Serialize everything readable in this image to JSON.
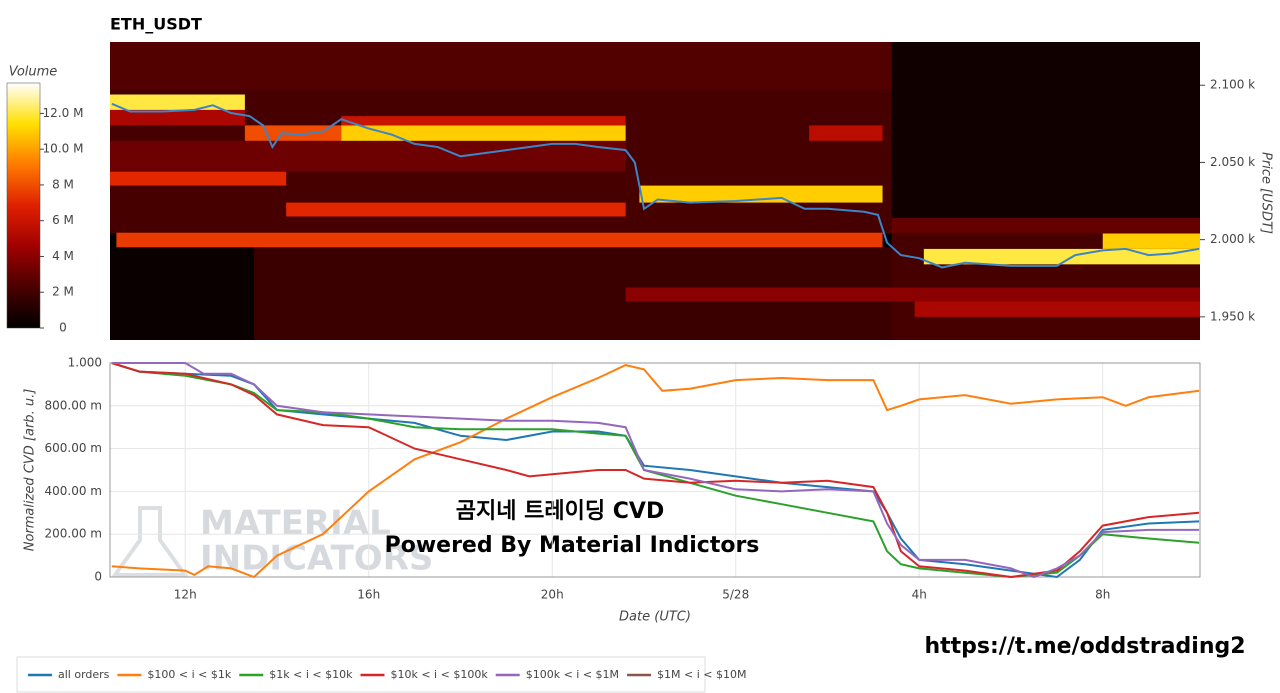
{
  "chart_data": [
    {
      "type": "heatmap",
      "title": "ETH_USDT",
      "y_label": "Price [USDT]",
      "xlim": [
        10.36,
        34.12
      ],
      "ylim": [
        1935,
        2128
      ],
      "yticks": [
        {
          "value": 1950,
          "label": "1.950 k"
        },
        {
          "value": 2000,
          "label": "2.000 k"
        },
        {
          "value": 2050,
          "label": "2.050 k"
        },
        {
          "value": 2100,
          "label": "2.100 k"
        }
      ],
      "colorbar": {
        "label": "Volume",
        "lim": [
          0,
          13.7
        ],
        "ticks": [
          0,
          {
            "value": 2,
            "label": "2 M"
          },
          {
            "value": 4,
            "label": "4 M"
          },
          {
            "value": 6,
            "label": "6 M"
          },
          {
            "value": 8,
            "label": "8 M"
          },
          {
            "value": 10,
            "label": "10.0 M"
          },
          {
            "value": 12,
            "label": "12.0 M"
          }
        ],
        "colorscale": [
          "#000000",
          "#4a0000",
          "#a00000",
          "#e02000",
          "#ff7a00",
          "#ffe000",
          "#ffffff"
        ]
      },
      "cells": [
        {
          "t0": 10.36,
          "t1": 27.4,
          "p0": 2097,
          "p1": 2128,
          "v": 2.5
        },
        {
          "t0": 10.36,
          "t1": 27.4,
          "p0": 2004,
          "p1": 2097,
          "v": 2.2
        },
        {
          "t0": 27.4,
          "t1": 34.12,
          "p0": 2007,
          "p1": 2128,
          "v": 0.5
        },
        {
          "t0": 27.4,
          "t1": 34.12,
          "p0": 1935,
          "p1": 2007,
          "v": 2.2
        },
        {
          "t0": 10.36,
          "t1": 13.5,
          "p0": 1935,
          "p1": 1995,
          "v": 0.3
        },
        {
          "t0": 13.5,
          "t1": 27.4,
          "p0": 1935,
          "p1": 1995,
          "v": 1.8
        },
        {
          "t0": 10.36,
          "t1": 21.6,
          "p0": 2044,
          "p1": 2064,
          "v": 3.2
        },
        {
          "t0": 10.36,
          "t1": 13.3,
          "p0": 2084,
          "p1": 2094,
          "v": 12
        },
        {
          "t0": 10.36,
          "t1": 13.3,
          "p0": 2074,
          "p1": 2084,
          "v": 5
        },
        {
          "t0": 13.3,
          "t1": 15.4,
          "p0": 2064,
          "p1": 2074,
          "v": 8
        },
        {
          "t0": 15.4,
          "t1": 21.6,
          "p0": 2064,
          "p1": 2074,
          "v": 11
        },
        {
          "t0": 15.4,
          "t1": 21.6,
          "p0": 2074,
          "p1": 2080,
          "v": 6
        },
        {
          "t0": 10.36,
          "t1": 14.2,
          "p0": 2035,
          "p1": 2044,
          "v": 7
        },
        {
          "t0": 14.2,
          "t1": 21.6,
          "p0": 2015,
          "p1": 2024,
          "v": 7
        },
        {
          "t0": 10.5,
          "t1": 27.2,
          "p0": 1995,
          "p1": 2004.5,
          "v": 7.5
        },
        {
          "t0": 21.9,
          "t1": 27.2,
          "p0": 2024,
          "p1": 2035,
          "v": 11
        },
        {
          "t0": 25.6,
          "t1": 27.2,
          "p0": 2064,
          "p1": 2074,
          "v": 5.5
        },
        {
          "t0": 21.6,
          "t1": 34.12,
          "p0": 1960,
          "p1": 1969,
          "v": 4
        },
        {
          "t0": 27.9,
          "t1": 34.12,
          "p0": 1950,
          "p1": 1960,
          "v": 5
        },
        {
          "t0": 28.1,
          "t1": 34.12,
          "p0": 1984,
          "p1": 1994,
          "v": 12
        },
        {
          "t0": 32,
          "t1": 34.12,
          "p0": 1994,
          "p1": 2004,
          "v": 11
        },
        {
          "t0": 27.4,
          "t1": 34.12,
          "p0": 2004,
          "p1": 2014,
          "v": 3
        }
      ],
      "price_line": {
        "color": "#3d85c6",
        "x": [
          10.4,
          10.8,
          11.5,
          12.2,
          12.6,
          13.0,
          13.4,
          13.7,
          13.9,
          14.1,
          14.5,
          15.0,
          15.4,
          16.0,
          16.5,
          17.0,
          17.5,
          18.0,
          18.5,
          19.0,
          19.5,
          20.0,
          20.5,
          21.0,
          21.6,
          21.8,
          22.0,
          22.3,
          23.0,
          24.0,
          25.0,
          25.5,
          26.0,
          26.8,
          27.1,
          27.3,
          27.6,
          28.0,
          28.5,
          29.0,
          30.0,
          31.0,
          31.4,
          32.0,
          32.5,
          33.0,
          33.5,
          34.1
        ],
        "values": [
          2088,
          2083,
          2083,
          2084,
          2087,
          2082,
          2080,
          2074,
          2060,
          2069,
          2068,
          2070,
          2078,
          2072,
          2068,
          2062,
          2060,
          2054,
          2056,
          2058,
          2060,
          2062,
          2062,
          2060,
          2058,
          2050,
          2020,
          2026,
          2024,
          2025,
          2027,
          2020,
          2020,
          2018,
          2016,
          1998,
          1990,
          1988,
          1982,
          1985,
          1983,
          1983,
          1990,
          1993,
          1994,
          1990,
          1991,
          1994
        ]
      }
    },
    {
      "type": "line",
      "x_label": "Date (UTC)",
      "y_label": "Normalized CVD [arb. u.]",
      "grid": true,
      "legend": "bottom-left",
      "xlim": [
        10.36,
        34.12
      ],
      "xticks": [
        {
          "value": 12,
          "label": "12h"
        },
        {
          "value": 16,
          "label": "16h"
        },
        {
          "value": 20,
          "label": "20h"
        },
        {
          "value": 24,
          "label": "5/28"
        },
        {
          "value": 28,
          "label": "4h"
        },
        {
          "value": 32,
          "label": "8h"
        }
      ],
      "ylim": [
        0,
        1
      ],
      "yticks": [
        0,
        {
          "value": 0.2,
          "label": "200.00 m"
        },
        {
          "value": 0.4,
          "label": "400.00 m"
        },
        {
          "value": 0.6,
          "label": "600.00 m"
        },
        {
          "value": 0.8,
          "label": "800.00 m"
        },
        {
          "value": 1,
          "label": "1.000"
        }
      ],
      "series": [
        {
          "name": "all orders",
          "color": "#1f77b4",
          "x": [
            10.4,
            11,
            12,
            13,
            13.5,
            14,
            15,
            16,
            17,
            18,
            19,
            20,
            21,
            21.6,
            22,
            23,
            24,
            25,
            26,
            27,
            27.3,
            27.6,
            28,
            29,
            30,
            31,
            31.5,
            32,
            33,
            34.1
          ],
          "values": [
            1,
            0.96,
            0.95,
            0.94,
            0.9,
            0.78,
            0.76,
            0.74,
            0.72,
            0.66,
            0.64,
            0.68,
            0.68,
            0.66,
            0.52,
            0.5,
            0.47,
            0.44,
            0.42,
            0.4,
            0.3,
            0.18,
            0.08,
            0.06,
            0.03,
            0.0,
            0.08,
            0.22,
            0.25,
            0.26
          ]
        },
        {
          "name": "$100 < i < $1k",
          "color": "#ff7f0e",
          "x": [
            10.4,
            11,
            12,
            12.2,
            12.5,
            13,
            13.5,
            14,
            15,
            16,
            17,
            18,
            19,
            20,
            21,
            21.6,
            22,
            22.4,
            23,
            24,
            25,
            26,
            27,
            27.3,
            27.6,
            28,
            29,
            30,
            31,
            32,
            32.5,
            33,
            34.1
          ],
          "values": [
            0.05,
            0.04,
            0.03,
            0.01,
            0.05,
            0.04,
            0.0,
            0.1,
            0.2,
            0.4,
            0.55,
            0.63,
            0.74,
            0.84,
            0.93,
            0.99,
            0.97,
            0.87,
            0.88,
            0.92,
            0.93,
            0.92,
            0.92,
            0.78,
            0.8,
            0.83,
            0.85,
            0.81,
            0.83,
            0.84,
            0.8,
            0.84,
            0.87
          ]
        },
        {
          "name": "$1k < i < $10k",
          "color": "#2ca02c",
          "x": [
            10.4,
            11,
            12,
            13,
            13.5,
            14,
            15,
            16,
            17,
            18,
            19,
            20,
            21,
            21.6,
            22,
            23,
            24,
            25,
            26,
            27,
            27.3,
            27.6,
            28,
            29,
            30,
            31,
            31.5,
            32,
            33,
            34.1
          ],
          "values": [
            1,
            0.96,
            0.94,
            0.9,
            0.86,
            0.78,
            0.77,
            0.74,
            0.7,
            0.69,
            0.69,
            0.69,
            0.67,
            0.66,
            0.5,
            0.44,
            0.38,
            0.34,
            0.3,
            0.26,
            0.12,
            0.06,
            0.04,
            0.02,
            0.0,
            0.02,
            0.1,
            0.2,
            0.18,
            0.16
          ]
        },
        {
          "name": "$10k < i < $100k",
          "color": "#d62728",
          "x": [
            10.4,
            11,
            12,
            13,
            13.5,
            14,
            15,
            16,
            17,
            18,
            19,
            19.5,
            20,
            21,
            21.6,
            22,
            23,
            24,
            25,
            26,
            27,
            27.3,
            27.6,
            28,
            29,
            30,
            31,
            31.5,
            32,
            33,
            34.1
          ],
          "values": [
            1,
            0.96,
            0.95,
            0.9,
            0.85,
            0.76,
            0.71,
            0.7,
            0.6,
            0.55,
            0.5,
            0.47,
            0.48,
            0.5,
            0.5,
            0.46,
            0.44,
            0.45,
            0.44,
            0.45,
            0.42,
            0.3,
            0.12,
            0.05,
            0.03,
            0.0,
            0.03,
            0.12,
            0.24,
            0.28,
            0.3
          ]
        },
        {
          "name": "$100k < i < $1M",
          "color": "#9467bd",
          "x": [
            10.4,
            12,
            12.4,
            13,
            13.5,
            14,
            15,
            16,
            17,
            18,
            19,
            20,
            21,
            21.6,
            22,
            23,
            24,
            25,
            26,
            27,
            27.3,
            27.6,
            28,
            29,
            30,
            30.5,
            31,
            31.5,
            32,
            33,
            34.1
          ],
          "values": [
            1,
            1,
            0.95,
            0.95,
            0.9,
            0.8,
            0.77,
            0.76,
            0.75,
            0.74,
            0.73,
            0.73,
            0.72,
            0.7,
            0.5,
            0.46,
            0.41,
            0.4,
            0.41,
            0.4,
            0.25,
            0.15,
            0.08,
            0.08,
            0.04,
            0.0,
            0.04,
            0.1,
            0.21,
            0.22,
            0.22
          ]
        },
        {
          "name": "$1M < i < $10M",
          "color": "#8c564b",
          "x": [],
          "values": []
        }
      ]
    }
  ],
  "annotations": {
    "watermark": [
      "MATERIAL",
      "INDICATORS"
    ],
    "headline": "곰지네 트레이딩 CVD",
    "subline": "Powered By Material Indictors",
    "link": "https://t.me/oddstrading2"
  }
}
